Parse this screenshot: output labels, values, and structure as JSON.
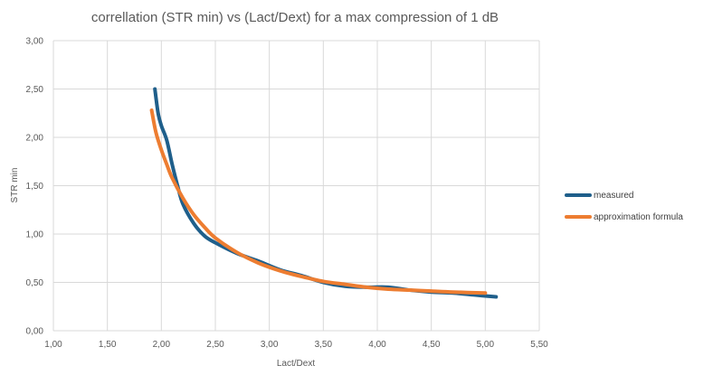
{
  "chart_data": {
    "type": "scatter",
    "title": "correllation (STR min) vs (Lact/Dext) for a max compression of 1 dB",
    "xlabel": "Lact/Dext",
    "ylabel": "STR min",
    "xlim": [
      1.0,
      5.5
    ],
    "ylim": [
      0.0,
      3.0
    ],
    "x_ticks": [
      "1,00",
      "1,50",
      "2,00",
      "2,50",
      "3,00",
      "3,50",
      "4,00",
      "4,50",
      "5,00",
      "5,50"
    ],
    "y_ticks": [
      "0,00",
      "0,50",
      "1,00",
      "1,50",
      "2,00",
      "2,50",
      "3,00"
    ],
    "grid": true,
    "legend_position": "right",
    "series": [
      {
        "name": "measured",
        "color": "#1f5f8b",
        "points": [
          [
            1.94,
            2.5
          ],
          [
            1.97,
            2.25
          ],
          [
            2.0,
            2.12
          ],
          [
            2.05,
            1.97
          ],
          [
            2.1,
            1.72
          ],
          [
            2.15,
            1.5
          ],
          [
            2.2,
            1.31
          ],
          [
            2.3,
            1.11
          ],
          [
            2.4,
            0.98
          ],
          [
            2.5,
            0.91
          ],
          [
            2.7,
            0.8
          ],
          [
            2.9,
            0.72
          ],
          [
            3.1,
            0.63
          ],
          [
            3.3,
            0.57
          ],
          [
            3.5,
            0.5
          ],
          [
            3.7,
            0.46
          ],
          [
            3.9,
            0.45
          ],
          [
            4.1,
            0.45
          ],
          [
            4.3,
            0.42
          ],
          [
            4.5,
            0.4
          ],
          [
            4.7,
            0.39
          ],
          [
            4.9,
            0.37
          ],
          [
            5.1,
            0.35
          ]
        ]
      },
      {
        "name": "approximation formula",
        "color": "#ed7d31",
        "points": [
          [
            1.91,
            2.28
          ],
          [
            1.95,
            2.05
          ],
          [
            2.0,
            1.87
          ],
          [
            2.05,
            1.72
          ],
          [
            2.1,
            1.58
          ],
          [
            2.2,
            1.37
          ],
          [
            2.3,
            1.2
          ],
          [
            2.4,
            1.07
          ],
          [
            2.5,
            0.96
          ],
          [
            2.7,
            0.81
          ],
          [
            2.9,
            0.7
          ],
          [
            3.1,
            0.62
          ],
          [
            3.3,
            0.56
          ],
          [
            3.5,
            0.51
          ],
          [
            3.7,
            0.48
          ],
          [
            3.9,
            0.45
          ],
          [
            4.1,
            0.43
          ],
          [
            4.3,
            0.42
          ],
          [
            4.5,
            0.41
          ],
          [
            4.7,
            0.4
          ],
          [
            5.0,
            0.39
          ]
        ]
      }
    ]
  }
}
